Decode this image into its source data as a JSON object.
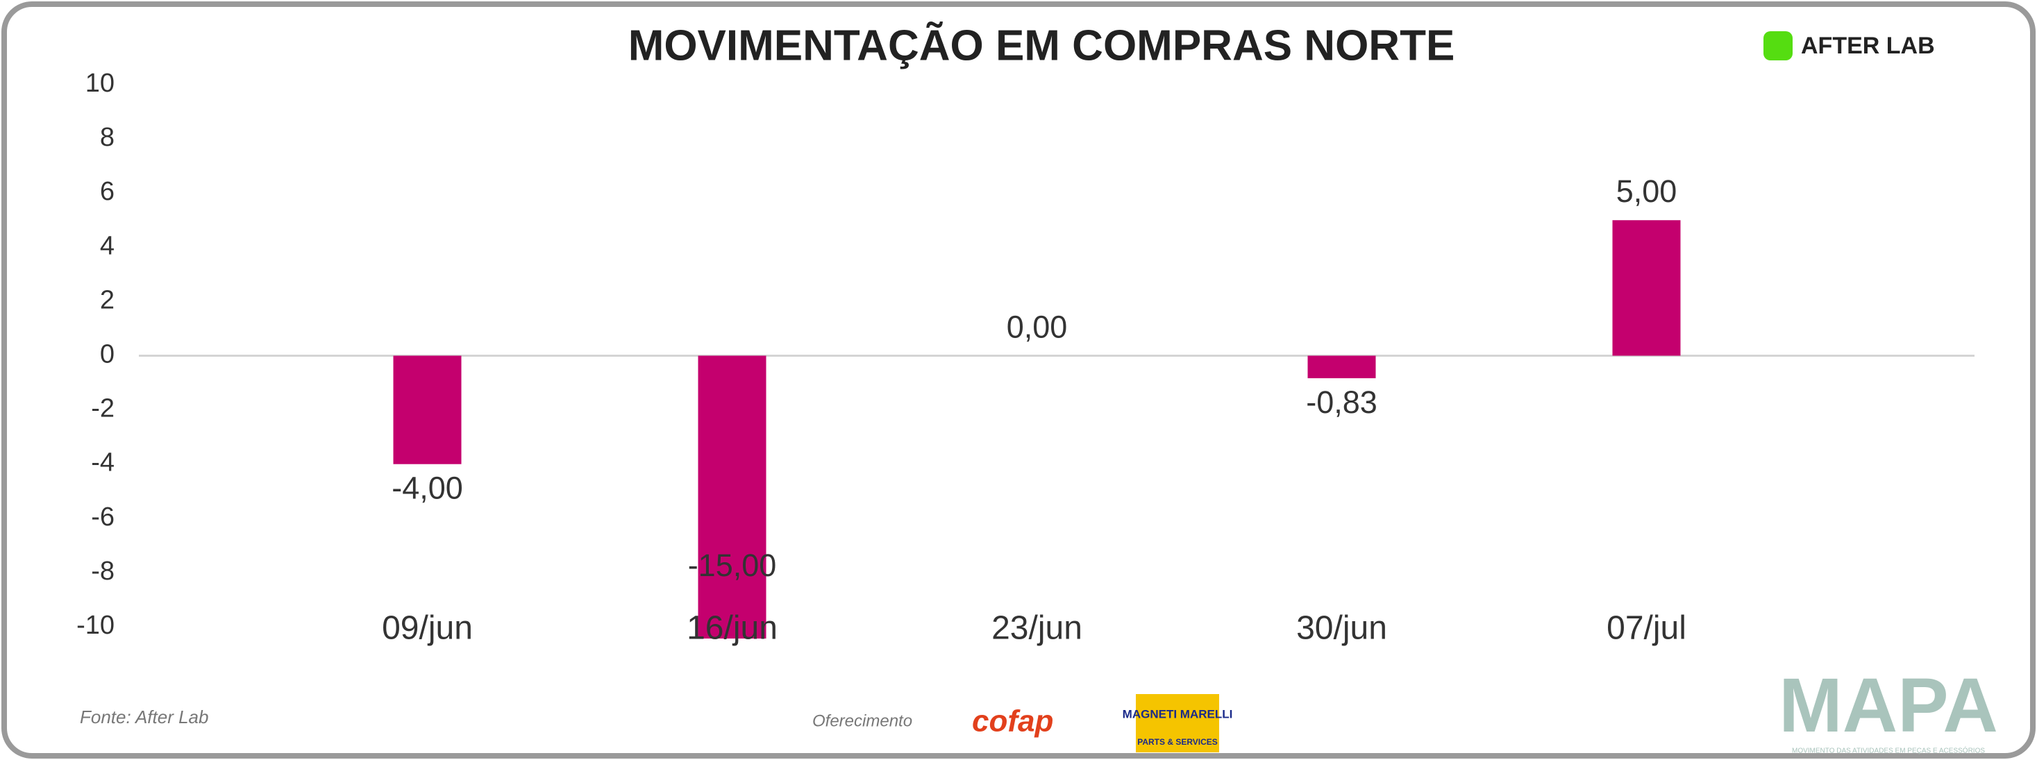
{
  "chart_data": {
    "type": "bar",
    "title": "MOVIMENTAÇÃO EM COMPRAS NORTE",
    "categories": [
      "09/jun",
      "16/jun",
      "23/jun",
      "30/jun",
      "07/jul"
    ],
    "values": [
      -4,
      -15,
      0,
      -0.83,
      5
    ],
    "value_labels": [
      "-4,00",
      "-15,00",
      "0,00",
      "-0,83",
      "5,00"
    ],
    "color": "#c4006e",
    "ylim": [
      -10,
      10
    ],
    "yticks": [
      -10,
      -8,
      -6,
      -4,
      -2,
      0,
      2,
      4,
      6,
      8,
      10
    ]
  },
  "footer": {
    "source": "Fonte: After Lab",
    "sponsor_label": "Oferecimento",
    "sponsors": [
      "cofap",
      "MAGNETI MARELLI",
      "PARTS & SERVICES"
    ]
  },
  "logos": {
    "top": "AFTER LAB",
    "bottom": "MAPA",
    "bottom_tagline": "MOVIMENTO DAS ATIVIDADES EM PEÇAS E ACESSÓRIOS"
  }
}
